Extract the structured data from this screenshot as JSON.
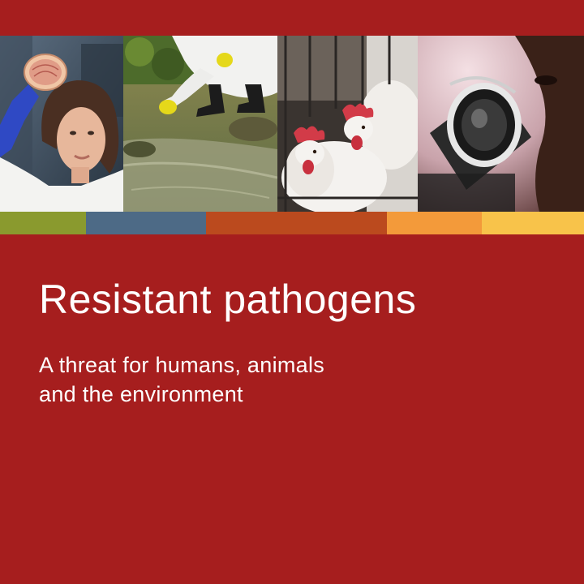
{
  "cover": {
    "background_color": "#a61e1e",
    "title": "Resistant pathogens",
    "subtitle_lines": [
      "A threat for humans, animals",
      "and the environment"
    ]
  },
  "photos": [
    {
      "subject": "scientist-holding-petri-dish"
    },
    {
      "subject": "water-sampling-in-stream"
    },
    {
      "subject": "caged-chickens"
    },
    {
      "subject": "person-at-microscope"
    }
  ],
  "color_bar": {
    "segments": [
      {
        "color": "#8a9a2e"
      },
      {
        "color": "#4d6a86"
      },
      {
        "color": "#bb4a1e"
      },
      {
        "color": "#f39a3a"
      },
      {
        "color": "#f8c34a"
      }
    ]
  }
}
